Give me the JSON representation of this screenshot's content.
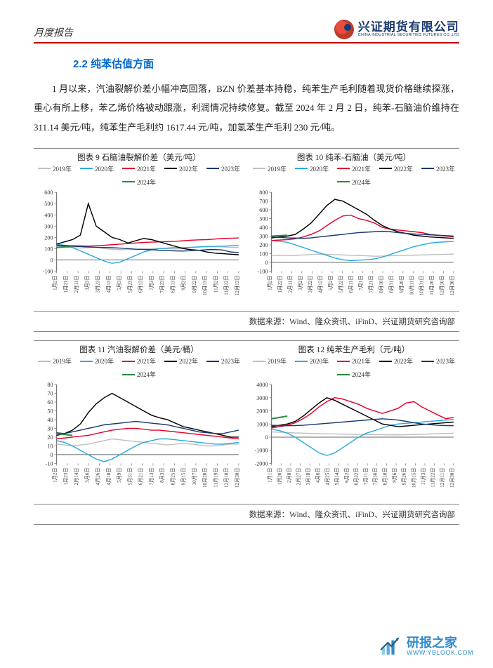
{
  "header": {
    "left": "月度报告",
    "logo_cn": "兴证期货有限公司",
    "logo_en": "CHINA INDUSTRIAL SECURITIES FUTURES CO.,LTD"
  },
  "section_title": "2.2 纯苯估值方面",
  "body_text": "1 月以来，汽油裂解价差小幅冲高回落，BZN 价差基本持稳，纯苯生产毛利随着现货价格继续探涨，重心有所上移，苯乙烯价格被动跟涨，利润情况持续修复。截至 2024 年 2 月 2 日，纯苯-石脑油价维持在 311.14 美元/吨，纯苯生产毛利约 1617.44 元/吨，加氢苯生产毛利 230 元/吨。",
  "series_colors": {
    "2019": "#bfbfbf",
    "2020": "#29abe2",
    "2021": "#e4002b",
    "2022": "#000000",
    "2023": "#1a3a6e",
    "2024": "#2e8b3d"
  },
  "legend_labels": [
    "2019年",
    "2020年",
    "2021年",
    "2022年",
    "2023年",
    "2024年"
  ],
  "x_ticks": [
    "1月2日",
    "1月23日",
    "2月13日",
    "3月5日",
    "3月26日",
    "4月16日",
    "5月7日",
    "5月28日",
    "6月18日",
    "7月9日",
    "7月30日",
    "8月20日",
    "9月10日",
    "10月1日",
    "10月22日",
    "11月12日",
    "12月3日",
    "12月24日"
  ],
  "x_ticks_alt_9": [
    "1月2日",
    "1月21日",
    "2月11日",
    "3月3日",
    "3月23日",
    "4月13日",
    "5月3日",
    "5月23日",
    "6月13日",
    "7月3日",
    "7月23日",
    "8月13日",
    "9月2日",
    "9月22日",
    "10月13日",
    "11月2日",
    "11月22日",
    "12月13日"
  ],
  "x_ticks_alt_10": [
    "1月2日",
    "1月22日",
    "2月11日",
    "3月2日",
    "3月22日",
    "4月12日",
    "5月2日",
    "5月22日",
    "6月11日",
    "7月1日",
    "7月21日",
    "8月10日",
    "8月31日",
    "9月20日",
    "10月11日",
    "10月31日",
    "11月20日",
    "12月10日",
    "12月30日"
  ],
  "x_ticks_alt_11": [
    "1月2日",
    "1月23日",
    "2月14日",
    "3月6日",
    "4月26日",
    "4月18日",
    "5月9日",
    "5月31日",
    "6月21日",
    "7月13日",
    "8月3日",
    "8月25日",
    "9月15日",
    "10月7日",
    "10月28日",
    "11月19日",
    "12月10日",
    "12月30日"
  ],
  "x_ticks_alt_12": [
    "1月1日",
    "1月20日",
    "2月8日",
    "2月27日",
    "3月18日",
    "4月6日",
    "4月25日",
    "5月14日",
    "6月2日",
    "6月22日",
    "7月11日",
    "7月30日",
    "8月18日",
    "9月6日",
    "9月26日",
    "10月15日",
    "11月3日",
    "11月22日",
    "12月11日",
    "12月30日"
  ],
  "charts": [
    {
      "id": "c9",
      "title": "图表 9 石脑油裂解价差（美元/吨）",
      "ylim": [
        -100,
        600
      ],
      "ytick_step": 100,
      "xticks_key": "x_ticks_alt_9",
      "series": {
        "2019": [
          120,
          115,
          110,
          105,
          108,
          112,
          100,
          95,
          90,
          92,
          95,
          98,
          100,
          102,
          100,
          98,
          100,
          110,
          115,
          118,
          120,
          115,
          112,
          110
        ],
        "2020": [
          140,
          130,
          110,
          80,
          50,
          20,
          -10,
          -30,
          -20,
          10,
          40,
          70,
          90,
          100,
          105,
          110,
          108,
          112,
          115,
          118,
          120,
          122,
          125,
          128
        ],
        "2021": [
          130,
          128,
          126,
          124,
          122,
          125,
          130,
          135,
          140,
          145,
          150,
          155,
          158,
          160,
          162,
          165,
          170,
          175,
          178,
          180,
          185,
          190,
          192,
          195
        ],
        "2022": [
          140,
          160,
          180,
          220,
          500,
          300,
          250,
          200,
          180,
          150,
          170,
          190,
          180,
          160,
          140,
          120,
          100,
          90,
          85,
          70,
          60,
          55,
          50,
          45
        ],
        "2023": [
          130,
          125,
          120,
          118,
          115,
          112,
          110,
          108,
          105,
          100,
          95,
          92,
          90,
          85,
          82,
          80,
          78,
          82,
          85,
          90,
          92,
          88,
          70,
          65
        ],
        "2024": [
          110,
          115,
          118
        ]
      }
    },
    {
      "id": "c10",
      "title": "图表 10 纯苯-石脑油（美元/吨）",
      "ylim": [
        -100,
        800
      ],
      "ytick_step": 100,
      "xticks_key": "x_ticks_alt_10",
      "series": {
        "2019": [
          80,
          82,
          80,
          78,
          85,
          90,
          95,
          92,
          88,
          85,
          80,
          78,
          75,
          70,
          72,
          75,
          78,
          80,
          82,
          85,
          88,
          90,
          92,
          95
        ],
        "2020": [
          250,
          240,
          230,
          200,
          170,
          140,
          110,
          80,
          50,
          30,
          20,
          25,
          30,
          40,
          60,
          90,
          120,
          150,
          180,
          200,
          220,
          230,
          235,
          240
        ],
        "2021": [
          250,
          255,
          260,
          270,
          290,
          320,
          360,
          420,
          480,
          530,
          540,
          500,
          480,
          450,
          400,
          380,
          370,
          360,
          350,
          340,
          320,
          310,
          300,
          290
        ],
        "2022": [
          280,
          290,
          300,
          320,
          380,
          450,
          550,
          650,
          720,
          700,
          650,
          600,
          550,
          480,
          420,
          380,
          350,
          330,
          310,
          300,
          290,
          285,
          280,
          275
        ],
        "2023": [
          290,
          285,
          280,
          278,
          275,
          280,
          290,
          300,
          310,
          320,
          330,
          340,
          345,
          350,
          355,
          350,
          340,
          330,
          325,
          320,
          315,
          310,
          305,
          300
        ],
        "2024": [
          300,
          305,
          310
        ]
      }
    },
    {
      "id": "c11",
      "title": "图表 11 汽油裂解价差（美元/桶）",
      "ylim": [
        -10,
        80
      ],
      "ytick_step": 10,
      "xticks_key": "x_ticks_alt_11",
      "series": {
        "2019": [
          12,
          11,
          10,
          11,
          12,
          14,
          16,
          18,
          17,
          16,
          15,
          14,
          13,
          12,
          11,
          12,
          13,
          12,
          11,
          10,
          10,
          11,
          12,
          12
        ],
        "2020": [
          16,
          14,
          10,
          5,
          0,
          -5,
          -8,
          -5,
          0,
          5,
          10,
          14,
          16,
          18,
          18,
          17,
          16,
          15,
          14,
          13,
          12,
          12,
          13,
          14
        ],
        "2021": [
          18,
          19,
          20,
          21,
          22,
          24,
          26,
          28,
          29,
          30,
          30,
          29,
          28,
          28,
          27,
          26,
          25,
          24,
          23,
          22,
          21,
          20,
          19,
          18
        ],
        "2022": [
          22,
          24,
          28,
          35,
          48,
          58,
          65,
          70,
          65,
          60,
          55,
          50,
          45,
          42,
          40,
          36,
          32,
          30,
          28,
          26,
          24,
          22,
          20,
          20
        ],
        "2023": [
          25,
          24,
          26,
          28,
          30,
          32,
          34,
          35,
          36,
          37,
          38,
          37,
          36,
          35,
          34,
          32,
          30,
          28,
          26,
          25,
          24,
          24,
          26,
          28
        ],
        "2024": [
          24,
          23,
          22
        ]
      }
    },
    {
      "id": "c12",
      "title": "图表 12 纯苯生产毛利（元/吨）",
      "ylim": [
        -2000,
        4000
      ],
      "ytick_step": 1000,
      "xticks_key": "x_ticks_alt_12",
      "series": {
        "2019": [
          400,
          380,
          350,
          320,
          300,
          280,
          260,
          250,
          240,
          230,
          220,
          210,
          200,
          190,
          180,
          175,
          170,
          180,
          200,
          220,
          240,
          260,
          280,
          300
        ],
        "2020": [
          600,
          500,
          300,
          0,
          -400,
          -800,
          -1200,
          -1400,
          -1200,
          -800,
          -400,
          0,
          300,
          500,
          700,
          900,
          1000,
          1050,
          1100,
          1150,
          1200,
          1250,
          1300,
          1350
        ],
        "2021": [
          700,
          800,
          900,
          1100,
          1400,
          1800,
          2300,
          2700,
          3000,
          2900,
          2700,
          2500,
          2200,
          2000,
          1800,
          2000,
          2200,
          2600,
          2700,
          2300,
          2000,
          1700,
          1400,
          1500
        ],
        "2022": [
          800,
          900,
          1000,
          1200,
          1600,
          2100,
          2600,
          3000,
          2800,
          2500,
          2200,
          1900,
          1600,
          1300,
          1000,
          900,
          800,
          850,
          900,
          950,
          1000,
          1050,
          1100,
          1150
        ],
        "2023": [
          900,
          880,
          870,
          880,
          900,
          950,
          1000,
          1050,
          1100,
          1150,
          1200,
          1250,
          1300,
          1350,
          1400,
          1350,
          1300,
          1200,
          1100,
          1000,
          950,
          900,
          880,
          870
        ],
        "2024": [
          1400,
          1500,
          1600
        ]
      }
    }
  ],
  "source_line": "数据来源：Wind、隆众资讯、iFinD、兴证期货研究咨询部",
  "watermark": {
    "cn": "研报之家",
    "en": "WWW.YBLOOK.COM"
  }
}
